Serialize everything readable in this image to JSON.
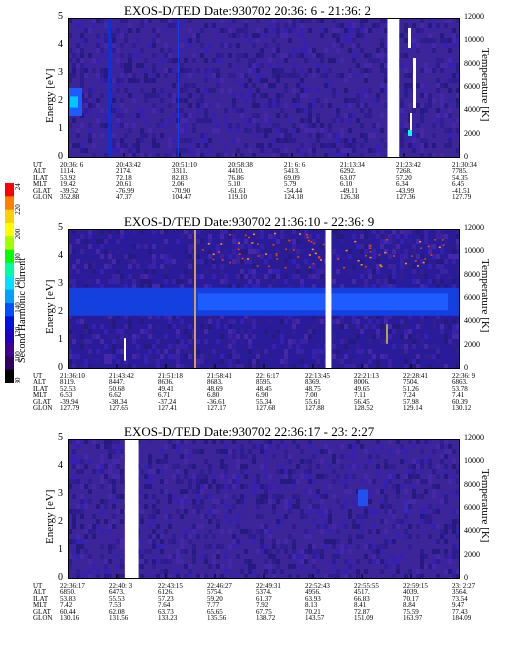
{
  "colorbar": {
    "label": "Second Harmonic Current",
    "ticks": [
      "240",
      "220",
      "200",
      "180",
      "160",
      "140",
      "120",
      "100",
      "80"
    ],
    "colors": [
      "#ff0000",
      "#ff8000",
      "#ffd000",
      "#ffff00",
      "#a0ff00",
      "#00ff00",
      "#00ffa0",
      "#00e0ff",
      "#00a0ff",
      "#0050ff",
      "#0010e0",
      "#2000c0",
      "#400090",
      "#300060",
      "#000000"
    ]
  },
  "chart_data": [
    {
      "type": "heatmap",
      "title": "EXOS-D/TED   Date:930702  20:36: 6 - 21:36: 2",
      "ylabel": "Energy [eV]",
      "y2label": "Temperature [K]",
      "yticks": [
        "0",
        "1",
        "2",
        "3",
        "4",
        "5"
      ],
      "y2ticks": [
        "0",
        "2000",
        "4000",
        "6000",
        "8000",
        "10000",
        "12000"
      ],
      "ylim": [
        0,
        5
      ],
      "y2lim": [
        0,
        12000
      ],
      "gaps": [
        {
          "start": 0.815,
          "end": 0.845
        }
      ],
      "row_labels": [
        "UT",
        "ALT",
        "ILAT",
        "MLT",
        "GLAT",
        "GLON"
      ],
      "columns": [
        [
          "20:36: 6",
          "1114.",
          "53.92",
          "19.42",
          "-39.52",
          "352.88"
        ],
        [
          "20:43:42",
          "2174.",
          "72.18",
          "20.61",
          "-76.99",
          "47.37"
        ],
        [
          "20:51:10",
          "3311.",
          "82.83",
          "2.06",
          "-70.90",
          "104.47"
        ],
        [
          "20:58:38",
          "4410.",
          "76.86",
          "5.10",
          "-61.61",
          "119.10"
        ],
        [
          "21: 6: 6",
          "5413.",
          "69.09",
          "5.79",
          "-54.44",
          "124.18"
        ],
        [
          "21:13:34",
          "6292.",
          "63.07",
          "6.10",
          "-49.11",
          "126.38"
        ],
        [
          "21:23:42",
          "7268.",
          "57.20",
          "6.34",
          "-43.99",
          "127.36"
        ],
        [
          "21:30:34",
          "7785.",
          "54.35",
          "6.45",
          "-41.51",
          "127.79"
        ]
      ]
    },
    {
      "type": "heatmap",
      "title": "EXOS-D/TED   Date:930702  21:36:10 - 22:36: 9",
      "ylabel": "Energy [eV]",
      "y2label": "Temperature [K]",
      "yticks": [
        "0",
        "1",
        "2",
        "3",
        "4",
        "5"
      ],
      "y2ticks": [
        "0",
        "2000",
        "4000",
        "6000",
        "8000",
        "10000",
        "12000"
      ],
      "ylim": [
        0,
        5
      ],
      "y2lim": [
        0,
        12000
      ],
      "gaps": [
        {
          "start": 0.657,
          "end": 0.672
        }
      ],
      "row_labels": [
        "UT",
        "ALT",
        "ILAT",
        "MLT",
        "GLAT",
        "GLON"
      ],
      "columns": [
        [
          "21:36:10",
          "8119.",
          "52.53",
          "6.53",
          "-39.94",
          "127.79"
        ],
        [
          "21:43:42",
          "8447.",
          "50.68",
          "6.62",
          "-38.34",
          "127.65"
        ],
        [
          "21:51:18",
          "8636.",
          "49.41",
          "6.71",
          "-37.24",
          "127.41"
        ],
        [
          "21:58:41",
          "8683.",
          "48.69",
          "6.80",
          "-36.61",
          "127.17"
        ],
        [
          "22: 6:17",
          "8595.",
          "48.45",
          "6.90",
          "55.34",
          "127.68"
        ],
        [
          "22:13:45",
          "8369.",
          "48.75",
          "7.00",
          "55.61",
          "127.88"
        ],
        [
          "22:21:13",
          "8006.",
          "49.65",
          "7.11",
          "56.45",
          "128.52"
        ],
        [
          "22:28:41",
          "7504.",
          "51.26",
          "7.24",
          "57.98",
          "129.14"
        ],
        [
          "22:36: 9",
          "6863.",
          "53.78",
          "7.41",
          "60.39",
          "130.12"
        ]
      ]
    },
    {
      "type": "heatmap",
      "title": "EXOS-D/TED   Date:930702  22:36:17 - 23: 2:27",
      "ylabel": "Energy [eV]",
      "y2label": "Temperature [K]",
      "yticks": [
        "0",
        "1",
        "2",
        "3",
        "4",
        "5"
      ],
      "y2ticks": [
        "0",
        "2000",
        "4000",
        "6000",
        "8000",
        "10000",
        "12000"
      ],
      "ylim": [
        0,
        5
      ],
      "y2lim": [
        0,
        12000
      ],
      "gaps": [
        {
          "start": 0.145,
          "end": 0.18
        }
      ],
      "row_labels": [
        "UT",
        "ALT",
        "ILAT",
        "MLT",
        "GLAT",
        "GLON"
      ],
      "columns": [
        [
          "22:36:17",
          "6850.",
          "53.83",
          "7.42",
          "60.44",
          "130.16"
        ],
        [
          "22:40: 3",
          "6473.",
          "55.53",
          "7.53",
          "62.08",
          "131.56"
        ],
        [
          "22:43:15",
          "6126.",
          "57.23",
          "7.64",
          "63.73",
          "133.23"
        ],
        [
          "22:46:27",
          "5754.",
          "59.20",
          "7.77",
          "65.65",
          "135.56"
        ],
        [
          "22:49:31",
          "5374.",
          "61.37",
          "7.92",
          "67.75",
          "138.72"
        ],
        [
          "22:52:43",
          "4956.",
          "63.93",
          "8.13",
          "70.21",
          "143.57"
        ],
        [
          "22:55:55",
          "4517.",
          "66.83",
          "8.41",
          "72.87",
          "151.09"
        ],
        [
          "22:59:15",
          "4039.",
          "70.17",
          "8.84",
          "75.59",
          "163.97"
        ],
        [
          "23: 2:27",
          "3564.",
          "73.54",
          "9.47",
          "77.43",
          "184.09"
        ]
      ]
    }
  ]
}
